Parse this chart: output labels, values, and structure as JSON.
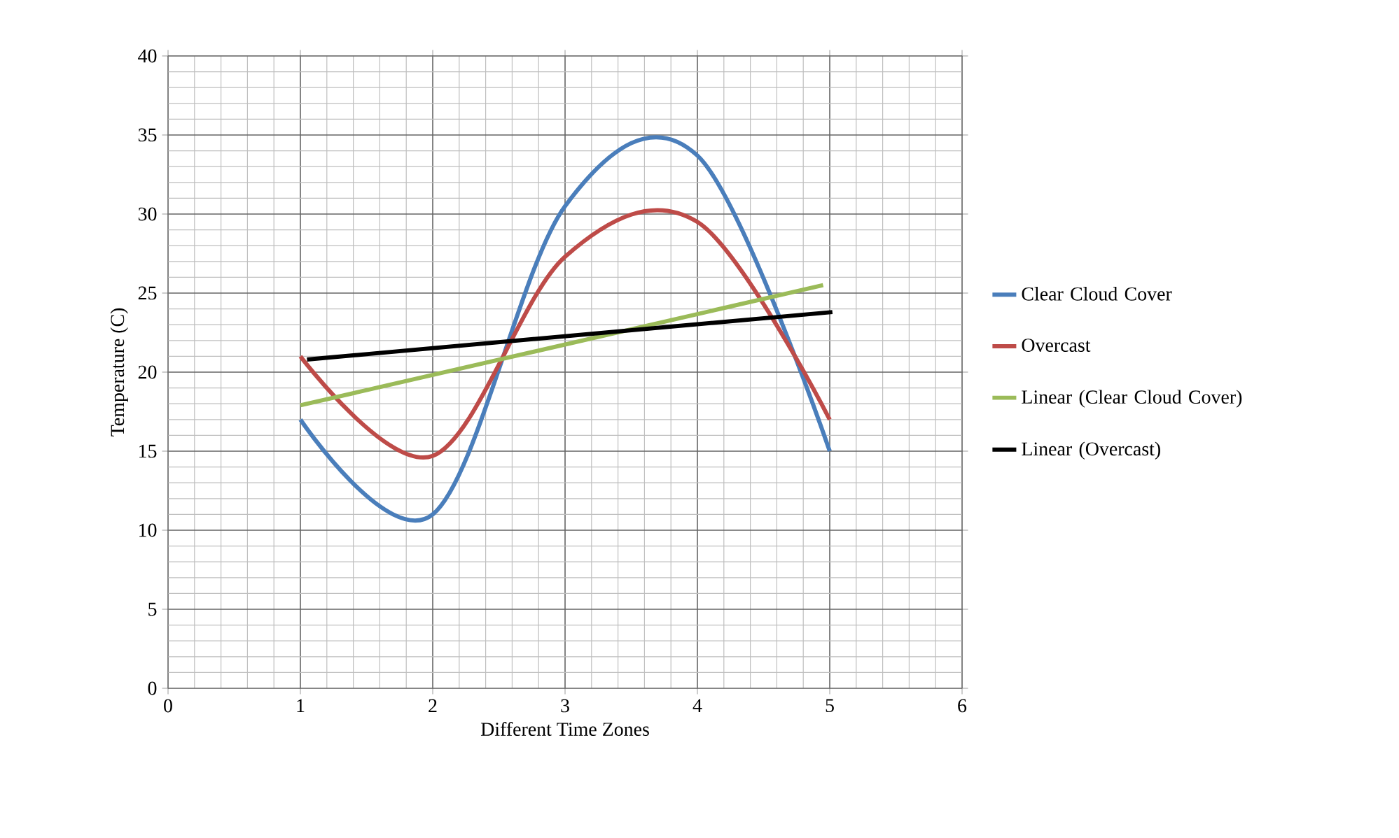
{
  "chart_data": {
    "type": "line",
    "xlabel": "Different Time Zones",
    "ylabel": "Temperature (C)",
    "x": [
      1,
      2,
      3,
      4,
      5
    ],
    "xlim": [
      0,
      6
    ],
    "xticks": [
      0,
      1,
      2,
      3,
      4,
      5,
      6
    ],
    "ylim": [
      0,
      40
    ],
    "yticks": [
      0,
      5,
      10,
      15,
      20,
      25,
      30,
      35,
      40
    ],
    "grid": true,
    "legend": "right",
    "marker": "none",
    "series": [
      {
        "name": "Clear Cloud Cover",
        "color": "#4a7ebb",
        "values": [
          17,
          11,
          30.5,
          33.7,
          15
        ]
      },
      {
        "name": "Overcast",
        "color": "#be4b48",
        "values": [
          21,
          14.7,
          27.3,
          29.5,
          17
        ]
      },
      {
        "name": "Linear (Clear Cloud Cover)",
        "color": "#9bbb59",
        "x": [
          1,
          4.95
        ],
        "values": [
          17.9,
          25.5
        ]
      },
      {
        "name": "Linear (Overcast)",
        "color": "#000000",
        "x": [
          1.05,
          5.02
        ],
        "values": [
          20.8,
          23.8
        ]
      }
    ]
  }
}
